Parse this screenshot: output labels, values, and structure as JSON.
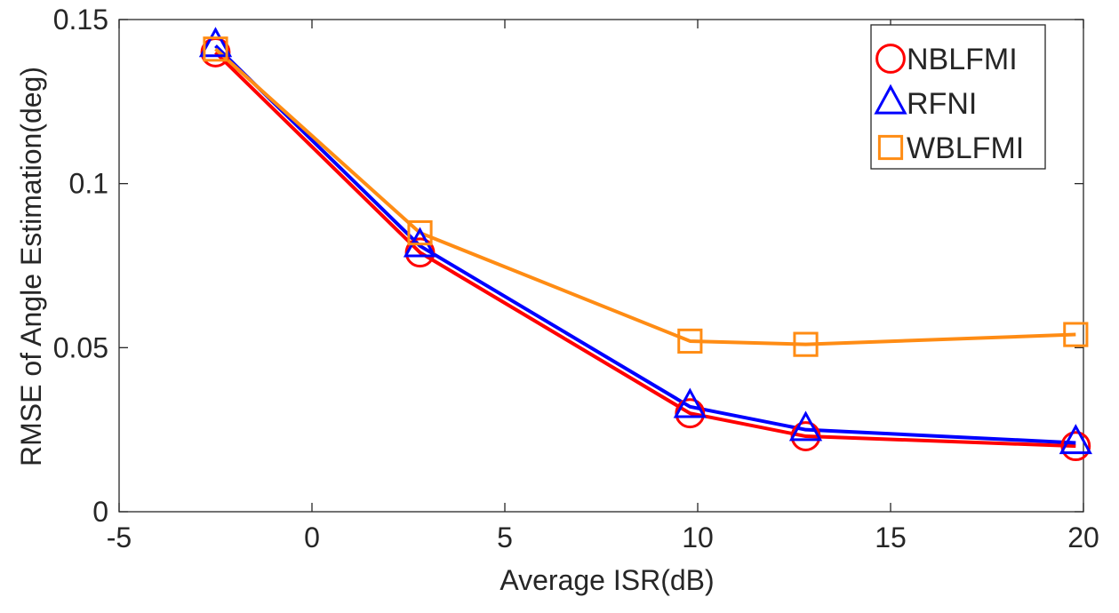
{
  "chart_data": {
    "type": "line",
    "title": "",
    "xlabel": "Average ISR(dB)",
    "ylabel": "RMSE of Angle Estimation(deg)",
    "xlim": [
      -5,
      20
    ],
    "ylim": [
      0,
      0.15
    ],
    "xticks": [
      -5,
      0,
      5,
      10,
      15,
      20
    ],
    "xtick_labels": [
      "-5",
      "0",
      "5",
      "10",
      "15",
      "20"
    ],
    "yticks": [
      0,
      0.05,
      0.1,
      0.15
    ],
    "ytick_labels": [
      "0",
      "0.05",
      "0.1",
      "0.15"
    ],
    "grid": false,
    "legend_position": "top-right",
    "x": [
      -2.5,
      2.8,
      9.8,
      12.8,
      19.8
    ],
    "series": [
      {
        "name": "NBLFMI",
        "values": [
          0.14,
          0.079,
          0.03,
          0.023,
          0.02
        ],
        "color": "#ff0000",
        "marker": "circle"
      },
      {
        "name": "RFNI",
        "values": [
          0.142,
          0.081,
          0.032,
          0.025,
          0.021
        ],
        "color": "#0000ff",
        "marker": "triangle"
      },
      {
        "name": "WBLFMI",
        "values": [
          0.141,
          0.085,
          0.052,
          0.051,
          0.054
        ],
        "color": "#ff8c14",
        "marker": "square"
      }
    ]
  }
}
